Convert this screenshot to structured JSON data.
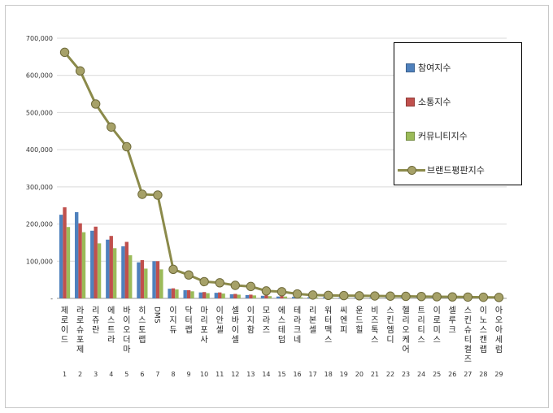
{
  "chart_data": {
    "type": "bar",
    "categories": [
      "제로이드",
      "라로슈포제",
      "리쥬란",
      "에스트라",
      "바이오더마",
      "히스토랩",
      "DMS",
      "이지듀",
      "닥터랩",
      "마리포사",
      "이안셀",
      "셀바이셀",
      "이지함",
      "모라즈",
      "에스테덤",
      "테라크네",
      "리본셀",
      "워터맥스",
      "씨엔피",
      "운드힐",
      "비즈톡스",
      "스킨엠디",
      "헬리오케어",
      "트리티스",
      "이로미스",
      "셀루크",
      "스킨슈티컬즈",
      "이노스캔랩",
      "아오아세럼"
    ],
    "ranks": [
      "1",
      "2",
      "3",
      "4",
      "5",
      "6",
      "7",
      "8",
      "9",
      "10",
      "11",
      "12",
      "13",
      "14",
      "15",
      "16",
      "17",
      "18",
      "19",
      "20",
      "21",
      "22",
      "23",
      "24",
      "25",
      "26",
      "27",
      "28",
      "29"
    ],
    "ylim": [
      0,
      700000
    ],
    "ytick_labels": [
      "-",
      "100,000",
      "200,000",
      "300,000",
      "400,000",
      "500,000",
      "600,000",
      "700,000"
    ],
    "grid": true,
    "legend_position": "top-right",
    "series": [
      {
        "name": "참여지수",
        "type": "bar",
        "color": "#4f81bd",
        "values": [
          225000,
          232000,
          182000,
          158000,
          140000,
          97000,
          100000,
          26000,
          22000,
          16000,
          15000,
          11000,
          9000,
          7000,
          5000,
          4000,
          3000,
          3000,
          2000,
          2000,
          2000,
          2000,
          1500,
          1500,
          1200,
          1000,
          1000,
          800,
          600
        ]
      },
      {
        "name": "소통지수",
        "type": "bar",
        "color": "#c0504d",
        "values": [
          245000,
          202000,
          193000,
          168000,
          152000,
          103000,
          100000,
          27000,
          22000,
          17000,
          16000,
          12000,
          10000,
          8000,
          6000,
          4000,
          3000,
          3000,
          2500,
          2000,
          2000,
          2000,
          1500,
          1500,
          1200,
          1000,
          1000,
          800,
          600
        ]
      },
      {
        "name": "커뮤니티지수",
        "type": "bar",
        "color": "#9bbb59",
        "values": [
          192000,
          178000,
          148000,
          135000,
          116000,
          80000,
          78000,
          24000,
          19000,
          14000,
          13000,
          10000,
          8000,
          6000,
          5000,
          3000,
          2500,
          2500,
          2000,
          1500,
          1500,
          1500,
          1200,
          1200,
          1000,
          800,
          800,
          600,
          500
        ]
      },
      {
        "name": "브랜드평판지수",
        "type": "line",
        "color": "#8b8a4a",
        "values": [
          662000,
          612000,
          523000,
          461000,
          408000,
          280000,
          278000,
          78000,
          63000,
          45000,
          42000,
          35000,
          32000,
          20000,
          18000,
          12000,
          9000,
          8000,
          7500,
          7000,
          6500,
          6000,
          5500,
          5000,
          4500,
          4000,
          3500,
          3000,
          2500
        ]
      }
    ]
  }
}
